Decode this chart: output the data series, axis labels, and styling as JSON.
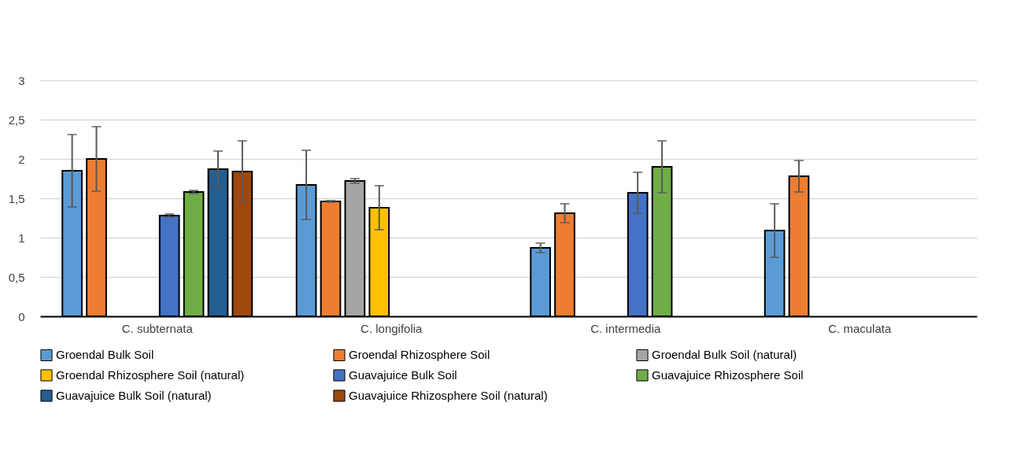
{
  "chart_data": {
    "type": "bar",
    "categories": [
      "C. subternata",
      "C. longifolia",
      "C. intermedia",
      "C. maculata"
    ],
    "ylim": [
      0,
      3
    ],
    "yticks": [
      0,
      {
        "value": 0.5,
        "label": "0,5"
      },
      1,
      {
        "value": 1.5,
        "label": "1,5"
      },
      2,
      {
        "value": 2.5,
        "label": "2,5"
      },
      3
    ],
    "grid": "y",
    "legend": "bottom",
    "series": [
      {
        "name": "Groendal Bulk Soil",
        "color": "#5b9bd5",
        "values": [
          1.85,
          1.67,
          0.87,
          1.09
        ],
        "errors": [
          0.46,
          0.44,
          0.06,
          0.34
        ]
      },
      {
        "name": "Groendal Rhizosphere Soil",
        "color": "#ed7d31",
        "values": [
          2.0,
          1.46,
          1.31,
          1.78
        ],
        "errors": [
          0.41,
          0.01,
          0.12,
          0.2
        ]
      },
      {
        "name": "Groendal Bulk Soil (natural)",
        "color": "#a5a5a5",
        "values": [
          null,
          1.72,
          null,
          null
        ],
        "errors": [
          null,
          0.03,
          null,
          null
        ]
      },
      {
        "name": "Groendal Rhizosphere Soil (natural)",
        "color": "#ffc000",
        "values": [
          null,
          1.38,
          null,
          null
        ],
        "errors": [
          null,
          0.28,
          null,
          null
        ]
      },
      {
        "name": "Guavajuice Bulk Soil",
        "color": "#4472c4",
        "values": [
          1.28,
          null,
          1.57,
          null
        ],
        "errors": [
          0.02,
          null,
          0.26,
          null
        ]
      },
      {
        "name": "Guavajuice Rhizosphere Soil",
        "color": "#70ad47",
        "values": [
          1.58,
          null,
          1.9,
          null
        ],
        "errors": [
          0.02,
          null,
          0.33,
          null
        ]
      },
      {
        "name": "Guavajuice Bulk Soil (natural)",
        "color": "#255e91",
        "values": [
          1.87,
          null,
          null,
          null
        ],
        "errors": [
          0.23,
          null,
          null,
          null
        ]
      },
      {
        "name": "Guavajuice Rhizosphere Soil (natural)",
        "color": "#9e480e",
        "values": [
          1.84,
          null,
          null,
          null
        ],
        "errors": [
          0.39,
          null,
          null,
          null
        ]
      }
    ]
  }
}
